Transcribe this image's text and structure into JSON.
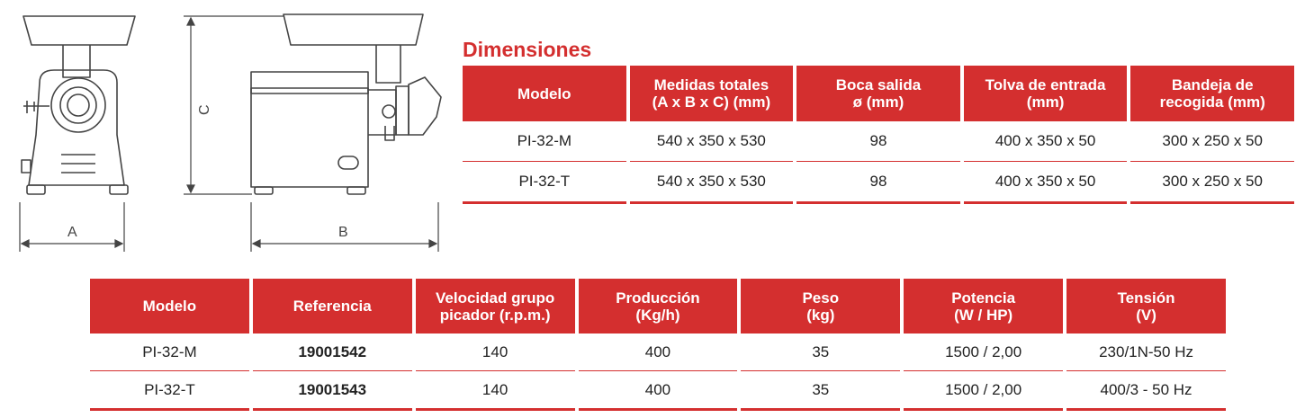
{
  "drawing": {
    "label_a": "A",
    "label_b": "B",
    "label_c": "C"
  },
  "dimensions": {
    "title": "Dimensiones",
    "headers": [
      "Modelo",
      "Medidas totales\n(A x B x C) (mm)",
      "Boca salida\nø (mm)",
      "Tolva de entrada\n(mm)",
      "Bandeja de\nrecogida (mm)"
    ],
    "rows": [
      [
        "PI-32-M",
        "540 x 350 x 530",
        "98",
        "400 x 350 x 50",
        "300 x 250 x 50"
      ],
      [
        "PI-32-T",
        "540 x 350 x 530",
        "98",
        "400 x 350 x 50",
        "300 x 250 x 50"
      ]
    ]
  },
  "specs": {
    "headers": [
      "Modelo",
      "Referencia",
      "Velocidad grupo\npicador (r.p.m.)",
      "Producción\n(Kg/h)",
      "Peso\n(kg)",
      "Potencia\n(W / HP)",
      "Tensión\n(V)"
    ],
    "rows": [
      [
        "PI-32-M",
        "19001542",
        "140",
        "400",
        "35",
        "1500 / 2,00",
        "230/1N-50 Hz"
      ],
      [
        "PI-32-T",
        "19001543",
        "140",
        "400",
        "35",
        "1500 / 2,00",
        "400/3 - 50 Hz"
      ]
    ]
  },
  "colors": {
    "accent": "#d42f2f",
    "line_drawing": "#444444"
  }
}
